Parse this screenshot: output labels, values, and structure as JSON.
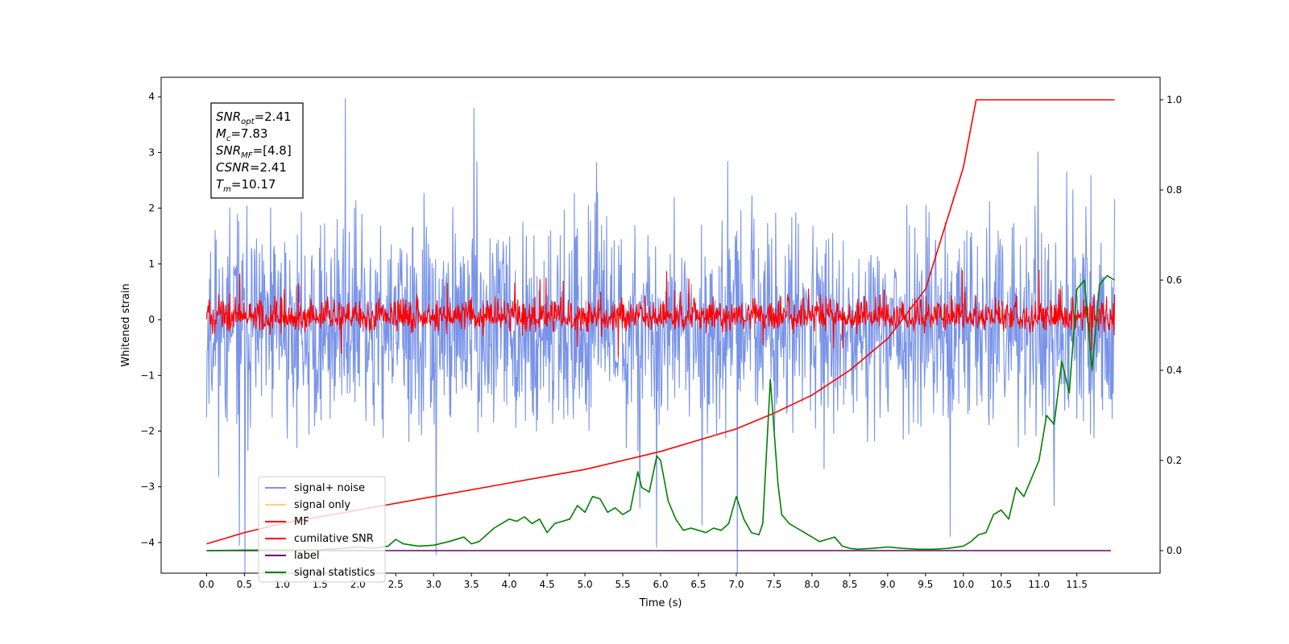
{
  "chart_data": {
    "type": "line",
    "xlabel": "Time (s)",
    "ylabel": "Whitened strain",
    "xlim": [
      -0.6,
      12.6
    ],
    "ylim": [
      -4.55,
      4.35
    ],
    "y2lim": [
      -0.05,
      1.05
    ],
    "x_ticks": [
      "0.0",
      "0.5",
      "1.0",
      "1.5",
      "2.0",
      "2.5",
      "3.0",
      "3.5",
      "4.0",
      "4.5",
      "5.0",
      "5.5",
      "6.0",
      "6.5",
      "7.0",
      "7.5",
      "8.0",
      "8.5",
      "9.0",
      "9.5",
      "10.0",
      "10.5",
      "11.0",
      "11.5"
    ],
    "y_ticks": [
      "4",
      "3",
      "2",
      "1",
      "0",
      "−1",
      "−2",
      "−3",
      "−4"
    ],
    "y2_ticks": [
      "1.0",
      "0.8",
      "0.6",
      "0.4",
      "0.2",
      "0.0"
    ],
    "annotation_lines": [
      {
        "sym": "SNR",
        "sub": "opt",
        "rest": "=2.41"
      },
      {
        "sym": "M",
        "sub": "c",
        "rest": "=7.83"
      },
      {
        "sym": "SNR",
        "sub": "MF",
        "rest": "=[4.8]"
      },
      {
        "sym": "CSNR",
        "sub": "",
        "rest": "=2.41"
      },
      {
        "sym": "T",
        "sub": "m",
        "rest": "=10.17"
      }
    ],
    "legend": [
      {
        "label": "signal+ noise",
        "color": "#7893e8"
      },
      {
        "label": "signal only",
        "color": "#ffd27f"
      },
      {
        "label": "MF",
        "color": "#ff0000"
      },
      {
        "label": "cumilative SNR",
        "color": "#ff0000"
      },
      {
        "label": "label",
        "color": "#6b006b"
      },
      {
        "label": "signal statistics",
        "color": "#008000"
      }
    ],
    "legend_loc": "lower left",
    "series": [
      {
        "name": "signal+ noise",
        "axis": "left",
        "color": "#7893e8",
        "kind": "noise",
        "x_range": [
          0.0,
          12.0
        ],
        "center": -0.2,
        "envelope": [
          -3.0,
          3.0
        ]
      },
      {
        "name": "MF",
        "axis": "left",
        "color": "#ff0000",
        "kind": "noise",
        "x_range": [
          0.0,
          12.0
        ],
        "center": 0.05,
        "envelope": [
          -0.35,
          0.6
        ]
      },
      {
        "name": "cumilative SNR",
        "axis": "right",
        "color": "#ff0000",
        "kind": "line",
        "x": [
          0.0,
          0.5,
          1.0,
          2.0,
          3.0,
          4.0,
          5.0,
          6.0,
          7.0,
          7.5,
          8.0,
          8.5,
          9.0,
          9.5,
          10.0,
          10.17,
          12.0
        ],
        "y": [
          0.015,
          0.04,
          0.06,
          0.09,
          0.12,
          0.15,
          0.18,
          0.22,
          0.27,
          0.305,
          0.345,
          0.4,
          0.47,
          0.58,
          0.85,
          1.0,
          1.0
        ]
      },
      {
        "name": "label",
        "axis": "right",
        "color": "#6b006b",
        "kind": "line",
        "x": [
          0.0,
          11.95
        ],
        "y": [
          0.0,
          0.0
        ]
      },
      {
        "name": "signal statistics",
        "axis": "right",
        "color": "#008000",
        "kind": "line",
        "x": [
          0.0,
          0.5,
          1.0,
          1.5,
          1.8,
          2.0,
          2.2,
          2.4,
          2.5,
          2.6,
          2.8,
          3.0,
          3.2,
          3.4,
          3.5,
          3.6,
          3.8,
          3.9,
          4.0,
          4.1,
          4.2,
          4.3,
          4.4,
          4.5,
          4.6,
          4.7,
          4.8,
          4.9,
          5.0,
          5.1,
          5.2,
          5.3,
          5.4,
          5.5,
          5.6,
          5.7,
          5.75,
          5.85,
          5.95,
          6.0,
          6.1,
          6.2,
          6.3,
          6.4,
          6.5,
          6.6,
          6.7,
          6.8,
          6.9,
          7.0,
          7.1,
          7.2,
          7.3,
          7.35,
          7.45,
          7.55,
          7.6,
          7.7,
          7.8,
          7.9,
          8.0,
          8.1,
          8.2,
          8.3,
          8.4,
          8.5,
          8.6,
          8.8,
          9.0,
          9.2,
          9.4,
          9.6,
          9.8,
          10.0,
          10.1,
          10.2,
          10.3,
          10.4,
          10.5,
          10.6,
          10.7,
          10.8,
          10.9,
          11.0,
          11.1,
          11.2,
          11.3,
          11.4,
          11.5,
          11.6,
          11.7,
          11.8,
          11.9,
          12.0
        ],
        "y": [
          0.0,
          0.001,
          0.001,
          0.002,
          0.005,
          0.008,
          0.005,
          0.01,
          0.025,
          0.015,
          0.01,
          0.012,
          0.02,
          0.03,
          0.015,
          0.02,
          0.05,
          0.06,
          0.07,
          0.065,
          0.075,
          0.06,
          0.07,
          0.04,
          0.06,
          0.065,
          0.07,
          0.1,
          0.085,
          0.12,
          0.115,
          0.085,
          0.095,
          0.08,
          0.09,
          0.175,
          0.14,
          0.13,
          0.21,
          0.2,
          0.11,
          0.07,
          0.045,
          0.05,
          0.045,
          0.04,
          0.05,
          0.045,
          0.06,
          0.12,
          0.07,
          0.04,
          0.035,
          0.06,
          0.38,
          0.15,
          0.08,
          0.06,
          0.05,
          0.04,
          0.03,
          0.02,
          0.025,
          0.03,
          0.01,
          0.005,
          0.003,
          0.005,
          0.008,
          0.005,
          0.003,
          0.003,
          0.005,
          0.01,
          0.02,
          0.035,
          0.04,
          0.08,
          0.09,
          0.07,
          0.14,
          0.12,
          0.16,
          0.2,
          0.3,
          0.28,
          0.42,
          0.35,
          0.58,
          0.6,
          0.4,
          0.59,
          0.61,
          0.6
        ]
      }
    ]
  }
}
